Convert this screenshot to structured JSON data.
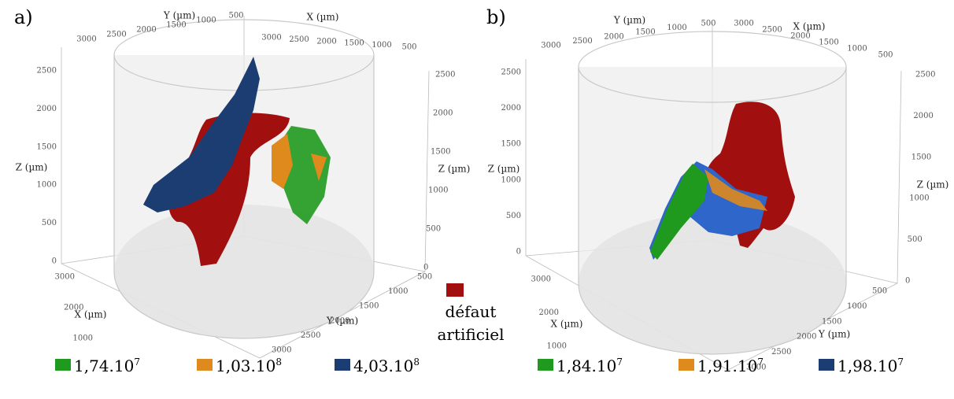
{
  "panels": [
    {
      "label": "a)",
      "axis_titles": {
        "y_top": "Y (µm)",
        "x_top": "X (µm)",
        "z_left": "Z (µm)",
        "z_right": "Z (µm)",
        "x_bottom": "X (µm)",
        "y_bottom": "Y (µm)"
      },
      "ticks": {
        "y_top": [
          3000,
          2500,
          2000,
          1500,
          1000,
          500
        ],
        "x_top": [
          3000,
          2500,
          2000,
          1500,
          1000,
          500
        ],
        "z_left": [
          0,
          500,
          1000,
          1500,
          2000,
          2500
        ],
        "z_right": [
          0,
          500,
          1000,
          1500,
          2000,
          2500
        ],
        "x_bottom": [
          3000,
          2000,
          1000
        ],
        "y_bottom": [
          500,
          1000,
          1500,
          2000,
          2500,
          3000
        ]
      },
      "legend": [
        {
          "color": "#1f9a1f",
          "text": "1,74.10",
          "exponent": "7"
        },
        {
          "color": "#df8a1c",
          "text": "1,03.10",
          "exponent": "8"
        },
        {
          "color": "#1b3d72",
          "text": "4,03.10",
          "exponent": "8"
        }
      ]
    },
    {
      "label": "b)",
      "axis_titles": {
        "y_top": "Y (µm)",
        "x_top": "X (µm)",
        "z_left": "Z (µm)",
        "z_right": "Z (µm)",
        "x_bottom": "X (µm)",
        "y_bottom": "Y (µm)"
      },
      "ticks": {
        "y_top": [
          3000,
          2500,
          2000,
          1500,
          1000,
          500
        ],
        "x_top": [
          3000,
          2500,
          2000,
          1500,
          1000,
          500
        ],
        "z_left": [
          0,
          500,
          1000,
          1500,
          2000,
          2500
        ],
        "z_right": [
          0,
          500,
          1000,
          1500,
          2000,
          2500
        ],
        "x_bottom": [
          3000,
          2000,
          1000
        ],
        "y_bottom": [
          500,
          1000,
          1500,
          2000,
          2500,
          3000
        ]
      },
      "legend": [
        {
          "color": "#1f9a1f",
          "text": "1,84.10",
          "exponent": "7"
        },
        {
          "color": "#df8a1c",
          "text": "1,91.10",
          "exponent": "7"
        },
        {
          "color": "#1b3d72",
          "text": "1,98.10",
          "exponent": "7"
        }
      ]
    }
  ],
  "artifact_legend": {
    "color": "#a20f0f",
    "lines": [
      "défaut",
      "artificiel"
    ]
  }
}
